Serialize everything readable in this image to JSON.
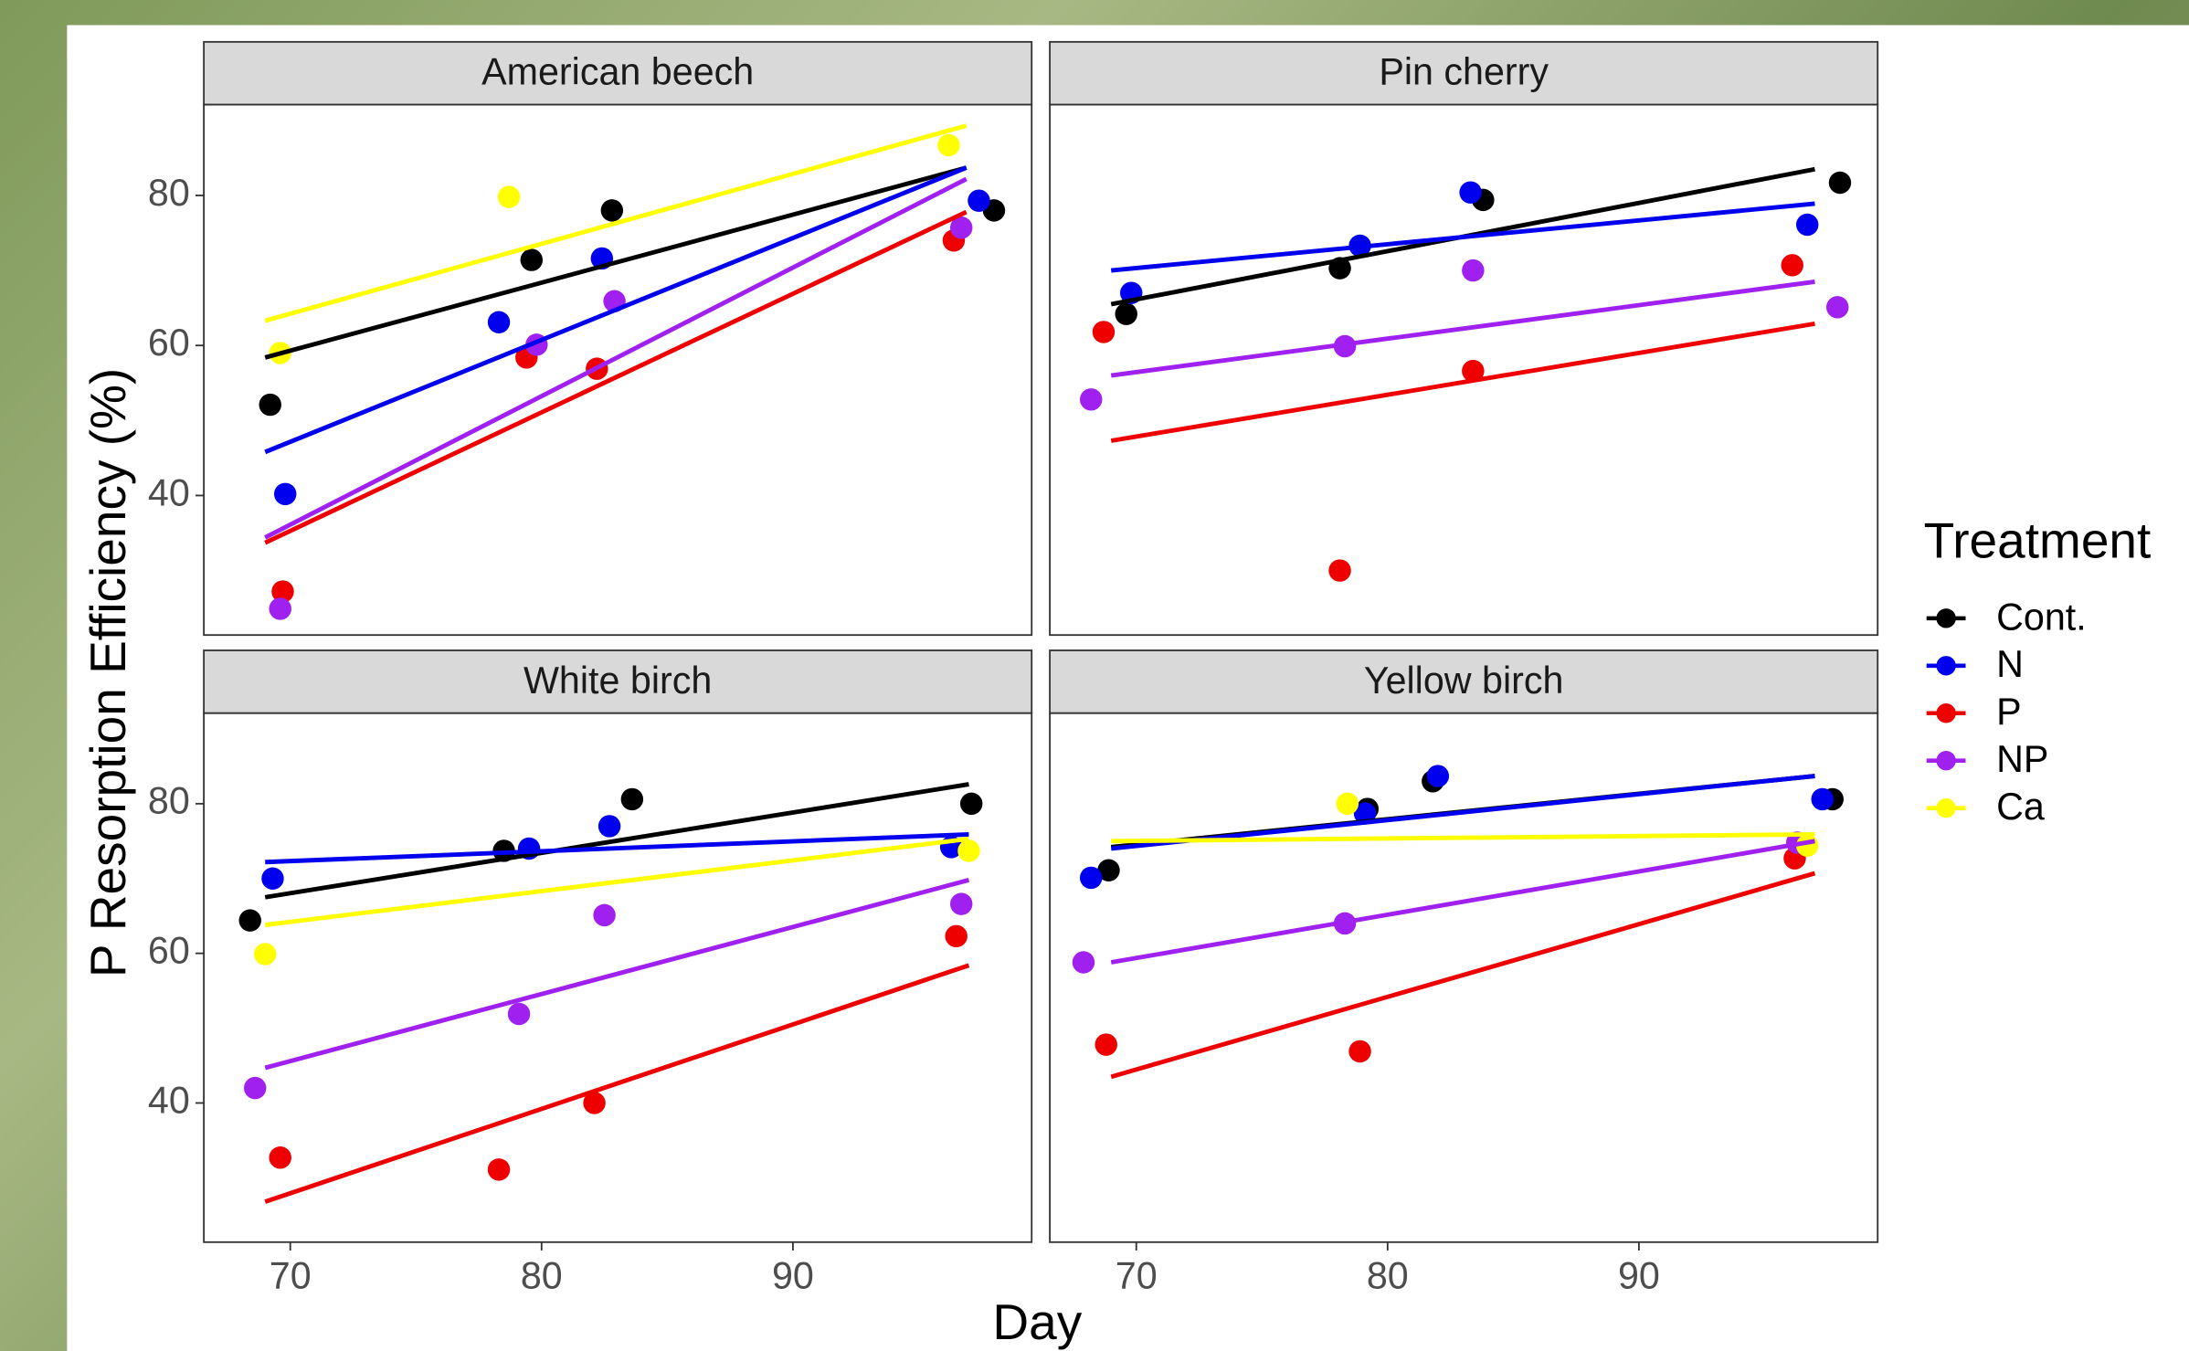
{
  "chart_data": {
    "type": "scatter",
    "y_label": "P Resorption Efficiency (%)",
    "x_label": "Day",
    "legend_title": "Treatment",
    "legend": "right",
    "xlim": [
      66.56,
      99.5
    ],
    "ylim": [
      21.4,
      92.1
    ],
    "xticks": [
      70,
      80,
      90
    ],
    "yticks": [
      40,
      60,
      80
    ],
    "series": [
      {
        "name": "Cont.",
        "color": "#000000"
      },
      {
        "name": "N",
        "color": "#0000ee"
      },
      {
        "name": "P",
        "color": "#ee0000"
      },
      {
        "name": "NP",
        "color": "#a020f0"
      },
      {
        "name": "Ca",
        "color": "#ffff00"
      }
    ],
    "panels": [
      {
        "title": "American beech",
        "series": [
          {
            "x": [
              69.2,
              79.6,
              82.8,
              98.0
            ],
            "values": [
              52.1,
              71.4,
              78.0,
              78.0
            ],
            "fit_x": [
              69.0,
              96.9
            ],
            "fit_values": [
              58.4,
              83.7
            ]
          },
          {
            "x": [
              69.8,
              78.3,
              82.4,
              97.4
            ],
            "values": [
              40.2,
              63.1,
              71.6,
              79.3
            ],
            "fit_x": [
              69.0,
              96.9
            ],
            "fit_values": [
              45.8,
              83.7
            ]
          },
          {
            "x": [
              69.7,
              79.4,
              82.2,
              96.4
            ],
            "values": [
              27.2,
              58.4,
              56.9,
              74.0
            ],
            "fit_x": [
              69.0,
              96.9
            ],
            "fit_values": [
              33.7,
              77.8
            ]
          },
          {
            "x": [
              69.6,
              79.8,
              82.9,
              96.7
            ],
            "values": [
              24.9,
              60.1,
              65.9,
              75.7
            ],
            "fit_x": [
              69.0,
              96.9
            ],
            "fit_values": [
              34.4,
              82.2
            ]
          },
          {
            "x": [
              69.6,
              78.7,
              96.2
            ],
            "values": [
              59.0,
              79.8,
              86.7
            ],
            "fit_x": [
              69.0,
              96.9
            ],
            "fit_values": [
              63.3,
              89.3
            ]
          }
        ]
      },
      {
        "title": "Pin cherry",
        "series": [
          {
            "x": [
              69.6,
              78.1,
              83.8,
              98.0
            ],
            "values": [
              64.2,
              70.3,
              79.4,
              81.7
            ],
            "fit_x": [
              69.0,
              97.0
            ],
            "fit_values": [
              65.5,
              83.5
            ]
          },
          {
            "x": [
              69.8,
              78.9,
              83.3,
              96.7
            ],
            "values": [
              67.0,
              73.3,
              80.4,
              76.1
            ],
            "fit_x": [
              69.0,
              97.0
            ],
            "fit_values": [
              70.0,
              78.9
            ]
          },
          {
            "x": [
              68.7,
              78.1,
              83.4,
              96.1
            ],
            "values": [
              61.8,
              30.0,
              56.6,
              70.7
            ],
            "fit_x": [
              69.0,
              97.0
            ],
            "fit_values": [
              47.3,
              62.9
            ]
          },
          {
            "x": [
              68.2,
              78.3,
              83.4,
              97.9
            ],
            "values": [
              52.8,
              59.9,
              70.0,
              65.1
            ],
            "fit_x": [
              69.0,
              97.0
            ],
            "fit_values": [
              56.0,
              68.5
            ]
          },
          {
            "x": [],
            "values": [],
            "fit_x": [],
            "fit_values": []
          }
        ]
      },
      {
        "title": "White birch",
        "series": [
          {
            "x": [
              68.4,
              78.5,
              83.6,
              97.1
            ],
            "values": [
              64.4,
              73.7,
              80.6,
              80.0
            ],
            "fit_x": [
              69.0,
              97.0
            ],
            "fit_values": [
              67.5,
              82.6
            ]
          },
          {
            "x": [
              69.3,
              79.5,
              82.7,
              96.3
            ],
            "values": [
              70.0,
              74.0,
              77.0,
              74.2
            ],
            "fit_x": [
              69.0,
              97.0
            ],
            "fit_values": [
              72.2,
              75.9
            ]
          },
          {
            "x": [
              69.6,
              78.3,
              82.1,
              96.5
            ],
            "values": [
              32.7,
              31.1,
              40.0,
              62.3
            ],
            "fit_x": [
              69.0,
              97.0
            ],
            "fit_values": [
              26.8,
              58.4
            ]
          },
          {
            "x": [
              68.6,
              79.1,
              82.5,
              96.7
            ],
            "values": [
              42.0,
              51.9,
              65.1,
              66.6
            ],
            "fit_x": [
              69.0,
              97.0
            ],
            "fit_values": [
              44.7,
              69.8
            ]
          },
          {
            "x": [
              69.0,
              97.0
            ],
            "values": [
              59.9,
              73.7
            ],
            "fit_x": [
              69.0,
              97.0
            ],
            "fit_values": [
              63.8,
              75.3
            ]
          }
        ]
      },
      {
        "title": "Yellow birch",
        "series": [
          {
            "x": [
              68.9,
              79.2,
              81.8,
              97.7
            ],
            "values": [
              71.1,
              79.3,
              83.0,
              80.6
            ],
            "fit_x": [
              69.0,
              97.0
            ],
            "fit_values": [
              74.2,
              83.7
            ]
          },
          {
            "x": [
              68.2,
              79.1,
              82.0,
              97.3
            ],
            "values": [
              70.1,
              78.7,
              83.7,
              80.6
            ],
            "fit_x": [
              69.0,
              97.0
            ],
            "fit_values": [
              74.0,
              83.7
            ]
          },
          {
            "x": [
              68.8,
              78.9,
              96.2
            ],
            "values": [
              47.8,
              46.9,
              72.7
            ],
            "fit_x": [
              69.0,
              97.0
            ],
            "fit_values": [
              43.5,
              70.7
            ]
          },
          {
            "x": [
              67.9,
              78.3,
              96.3
            ],
            "values": [
              58.8,
              64.0,
              74.8
            ],
            "fit_x": [
              69.0,
              97.0
            ],
            "fit_values": [
              58.8,
              75.0
            ]
          },
          {
            "x": [
              78.4,
              96.7
            ],
            "values": [
              80.0,
              74.4
            ],
            "fit_x": [
              69.0,
              97.0
            ],
            "fit_values": [
              75.0,
              75.9
            ]
          }
        ]
      }
    ]
  }
}
